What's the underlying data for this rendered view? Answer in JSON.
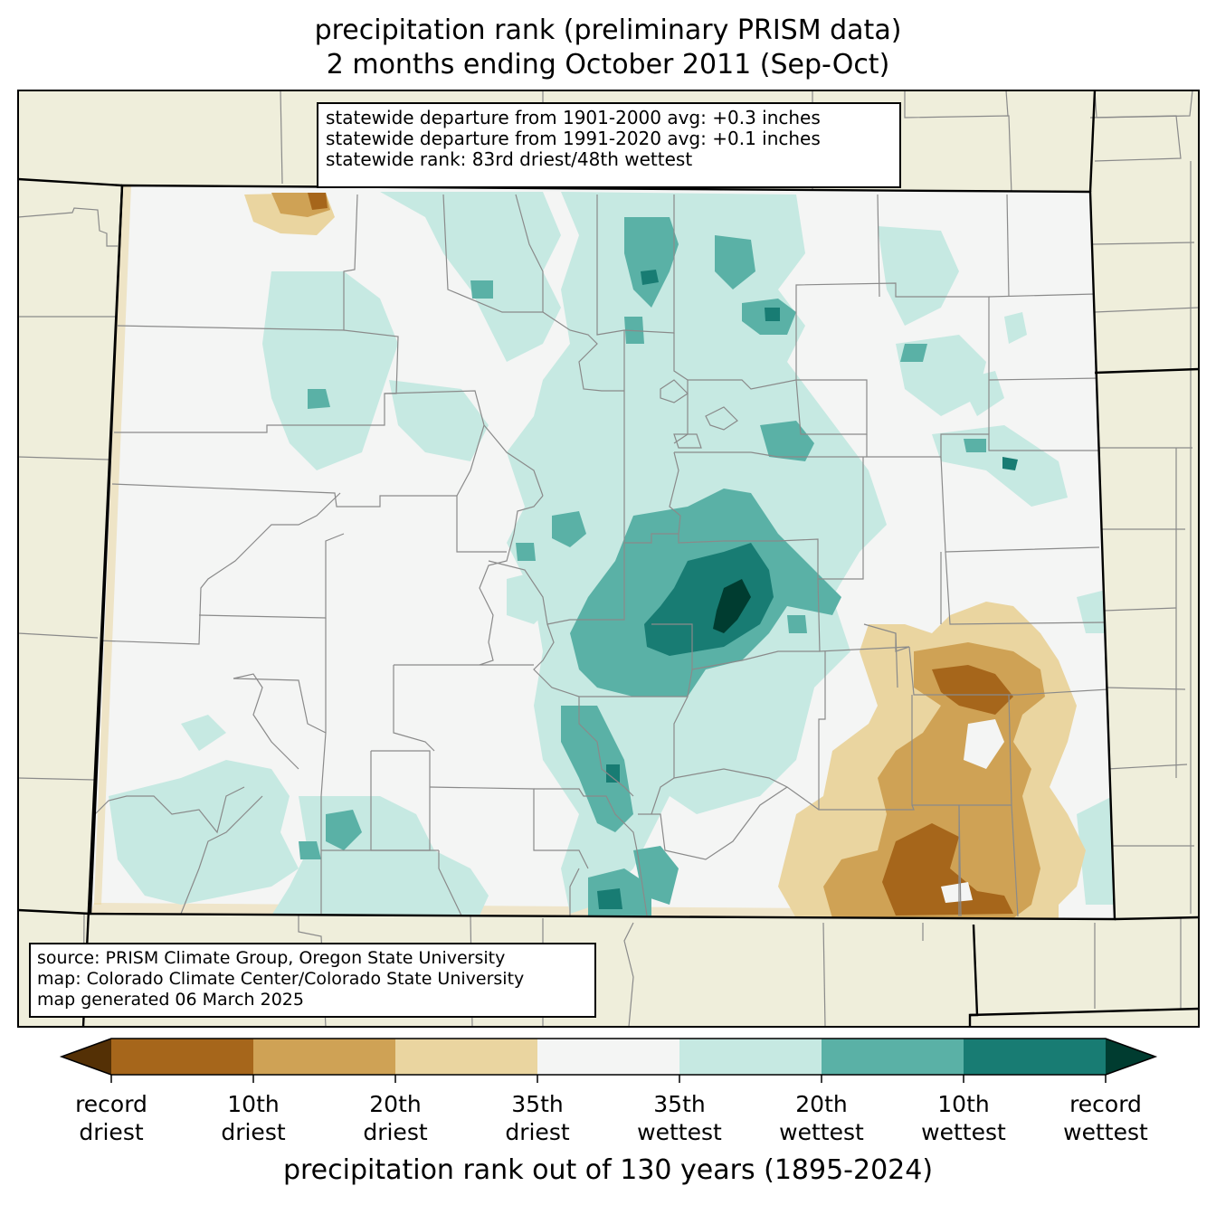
{
  "title": {
    "line1": "precipitation rank (preliminary PRISM data)",
    "line2": "2 months ending October 2011 (Sep-Oct)"
  },
  "stats": {
    "line1": "statewide departure from 1901-2000 avg: +0.3 inches",
    "line2": "statewide departure from 1991-2020 avg: +0.1 inches",
    "line3": "statewide rank: 83rd driest/48th wettest"
  },
  "source": {
    "line1": "source: PRISM Climate Group, Oregon State University",
    "line2": "map: Colorado Climate Center/Colorado State University",
    "line3": "map generated 06 March 2025"
  },
  "colorbar": {
    "title": "precipitation rank out of 130 years (1895-2024)",
    "ticks": [
      {
        "l1": "record",
        "l2": "driest"
      },
      {
        "l1": "10th",
        "l2": "driest"
      },
      {
        "l1": "20th",
        "l2": "driest"
      },
      {
        "l1": "35th",
        "l2": "driest"
      },
      {
        "l1": "35th",
        "l2": "wettest"
      },
      {
        "l1": "20th",
        "l2": "wettest"
      },
      {
        "l1": "10th",
        "l2": "wettest"
      },
      {
        "l1": "record",
        "l2": "wettest"
      }
    ],
    "colors": {
      "below_min": "#543005",
      "record_to_10th_driest": "#a6661b",
      "10th_to_20th_driest": "#cfa255",
      "20th_to_35th_driest": "#ead5a0",
      "near_normal": "#f4f5f4",
      "35th_to_20th_wettest": "#c6e9e2",
      "20th_to_10th_wettest": "#5ab1a6",
      "10th_to_record_wettest": "#187c73",
      "above_max": "#003c30"
    }
  },
  "map_colors": {
    "background_land": "#efeedb",
    "state_border": "#000000",
    "county_border": "#8a8a8a"
  }
}
